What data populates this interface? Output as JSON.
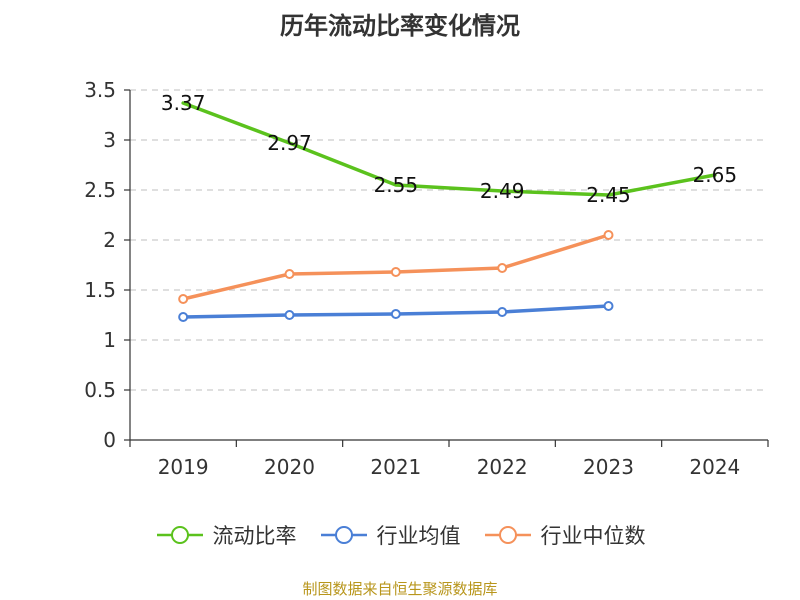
{
  "chart_data": {
    "type": "line",
    "title": "历年流动比率变化情况",
    "categories": [
      "2019",
      "2020",
      "2021",
      "2022",
      "2023",
      "2024"
    ],
    "ylim": [
      0,
      3.5
    ],
    "yticks": [
      "0",
      "0.5",
      "1",
      "1.5",
      "2",
      "2.5",
      "3",
      "3.5"
    ],
    "grid": true,
    "legend_position": "bottom",
    "series": [
      {
        "name": "流动比率",
        "color": "#5bc21d",
        "values": [
          3.37,
          2.97,
          2.55,
          2.49,
          2.45,
          2.65
        ],
        "labels": [
          "3.37",
          "2.97",
          "2.55",
          "2.49",
          "2.45",
          "2.65"
        ]
      },
      {
        "name": "行业均值",
        "color": "#4a7fd6",
        "values": [
          1.23,
          1.25,
          1.26,
          1.28,
          1.34,
          null
        ]
      },
      {
        "name": "行业中位数",
        "color": "#f5915a",
        "values": [
          1.41,
          1.66,
          1.68,
          1.72,
          2.05,
          null
        ]
      }
    ]
  },
  "source": "制图数据来自恒生聚源数据库"
}
